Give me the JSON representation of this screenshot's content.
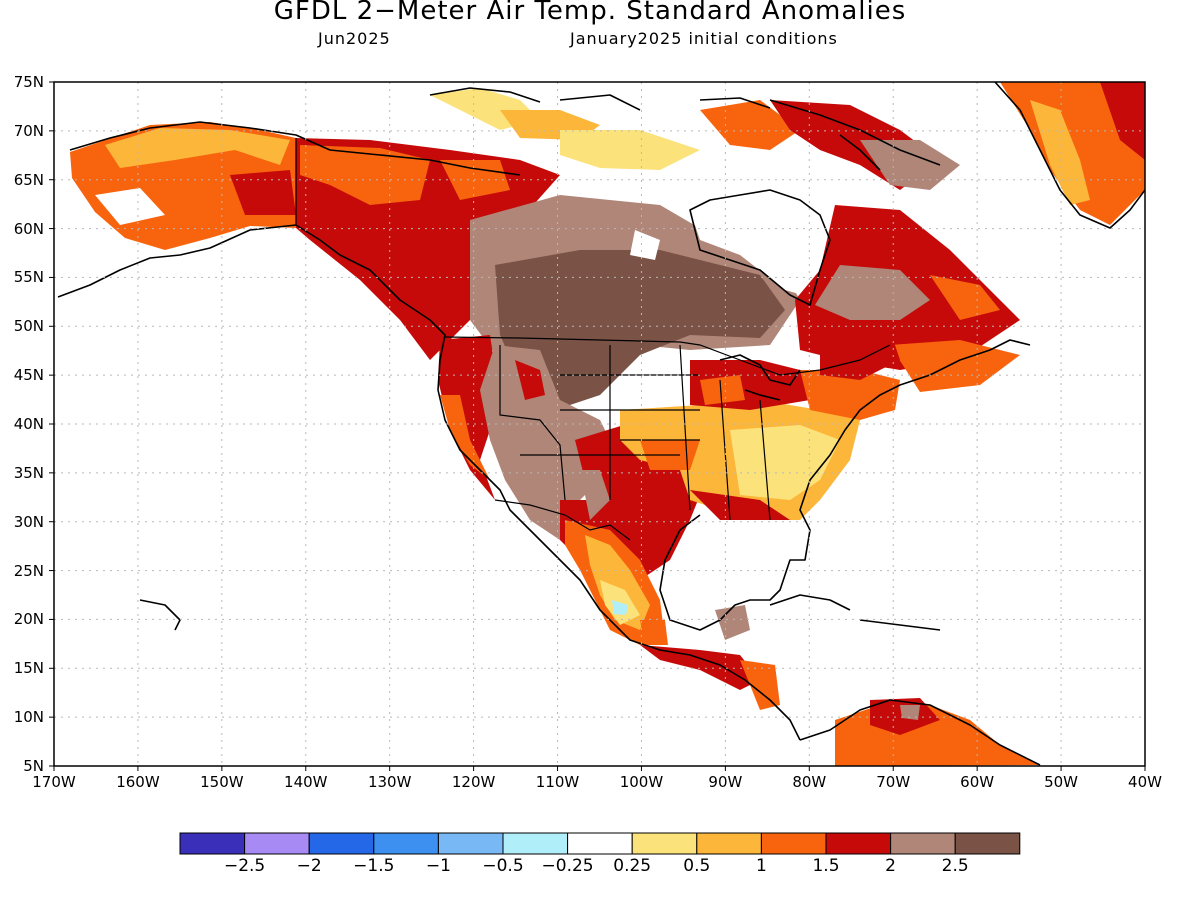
{
  "header": {
    "title": "GFDL 2−Meter Air Temp. Standard Anomalies",
    "target_month": "Jun2025",
    "init": "January2025 initial conditions"
  },
  "axes": {
    "lat_labels": [
      "75N",
      "70N",
      "65N",
      "60N",
      "55N",
      "50N",
      "45N",
      "40N",
      "35N",
      "30N",
      "25N",
      "20N",
      "15N",
      "10N",
      "5N"
    ],
    "lon_labels": [
      "170W",
      "160W",
      "150W",
      "140W",
      "130W",
      "120W",
      "110W",
      "100W",
      "90W",
      "80W",
      "70W",
      "60W",
      "50W",
      "40W"
    ],
    "extent": {
      "lon": [
        -170,
        -40
      ],
      "lat": [
        5,
        75
      ]
    },
    "grid": "dotted"
  },
  "colorbar": {
    "colors": [
      "#3a2fb8",
      "#a88af5",
      "#2468e8",
      "#3d8ff0",
      "#78b8f4",
      "#b0eefa",
      "#ffffff",
      "#fce27a",
      "#fcb63a",
      "#f8640e",
      "#c60a0a",
      "#b08678",
      "#7a5246"
    ],
    "labels": [
      "−2.5",
      "−2",
      "−1.5",
      "−1",
      "−0.5",
      "−0.25",
      "0.25",
      "0.5",
      "1",
      "1.5",
      "2",
      "2.5"
    ]
  },
  "chart_data": {
    "type": "heatmap",
    "variable": "2-meter air temperature standard anomaly",
    "regions": [
      {
        "region": "Alaska interior",
        "category": "1 to 1.5"
      },
      {
        "region": "Northern Alaska coast",
        "category": "0.25 to 1"
      },
      {
        "region": "Yukon / NW Territories",
        "category": "1.5 to 2"
      },
      {
        "region": "Central Canada & northern Plains",
        "category": "> 2.5"
      },
      {
        "region": "Great Basin / Rockies",
        "category": "2 to 2.5"
      },
      {
        "region": "Pacific Northwest",
        "category": "1.5 to 2"
      },
      {
        "region": "California coast",
        "category": "1 to 1.5"
      },
      {
        "region": "Texas / southern Plains",
        "category": "1.5 to 2"
      },
      {
        "region": "Southeast US",
        "category": "0.25 to 1"
      },
      {
        "region": "Northeast US",
        "category": "1 to 1.5"
      },
      {
        "region": "Quebec / Labrador",
        "category": "1.5 to 2.5"
      },
      {
        "region": "Greenland",
        "category": "0.25 to 1.5"
      },
      {
        "region": "Mexico interior",
        "category": "0.25 to 1"
      },
      {
        "region": "Central America",
        "category": "1.5 to 2"
      },
      {
        "region": "Northern South America",
        "category": "1 to 1.5"
      }
    ]
  }
}
